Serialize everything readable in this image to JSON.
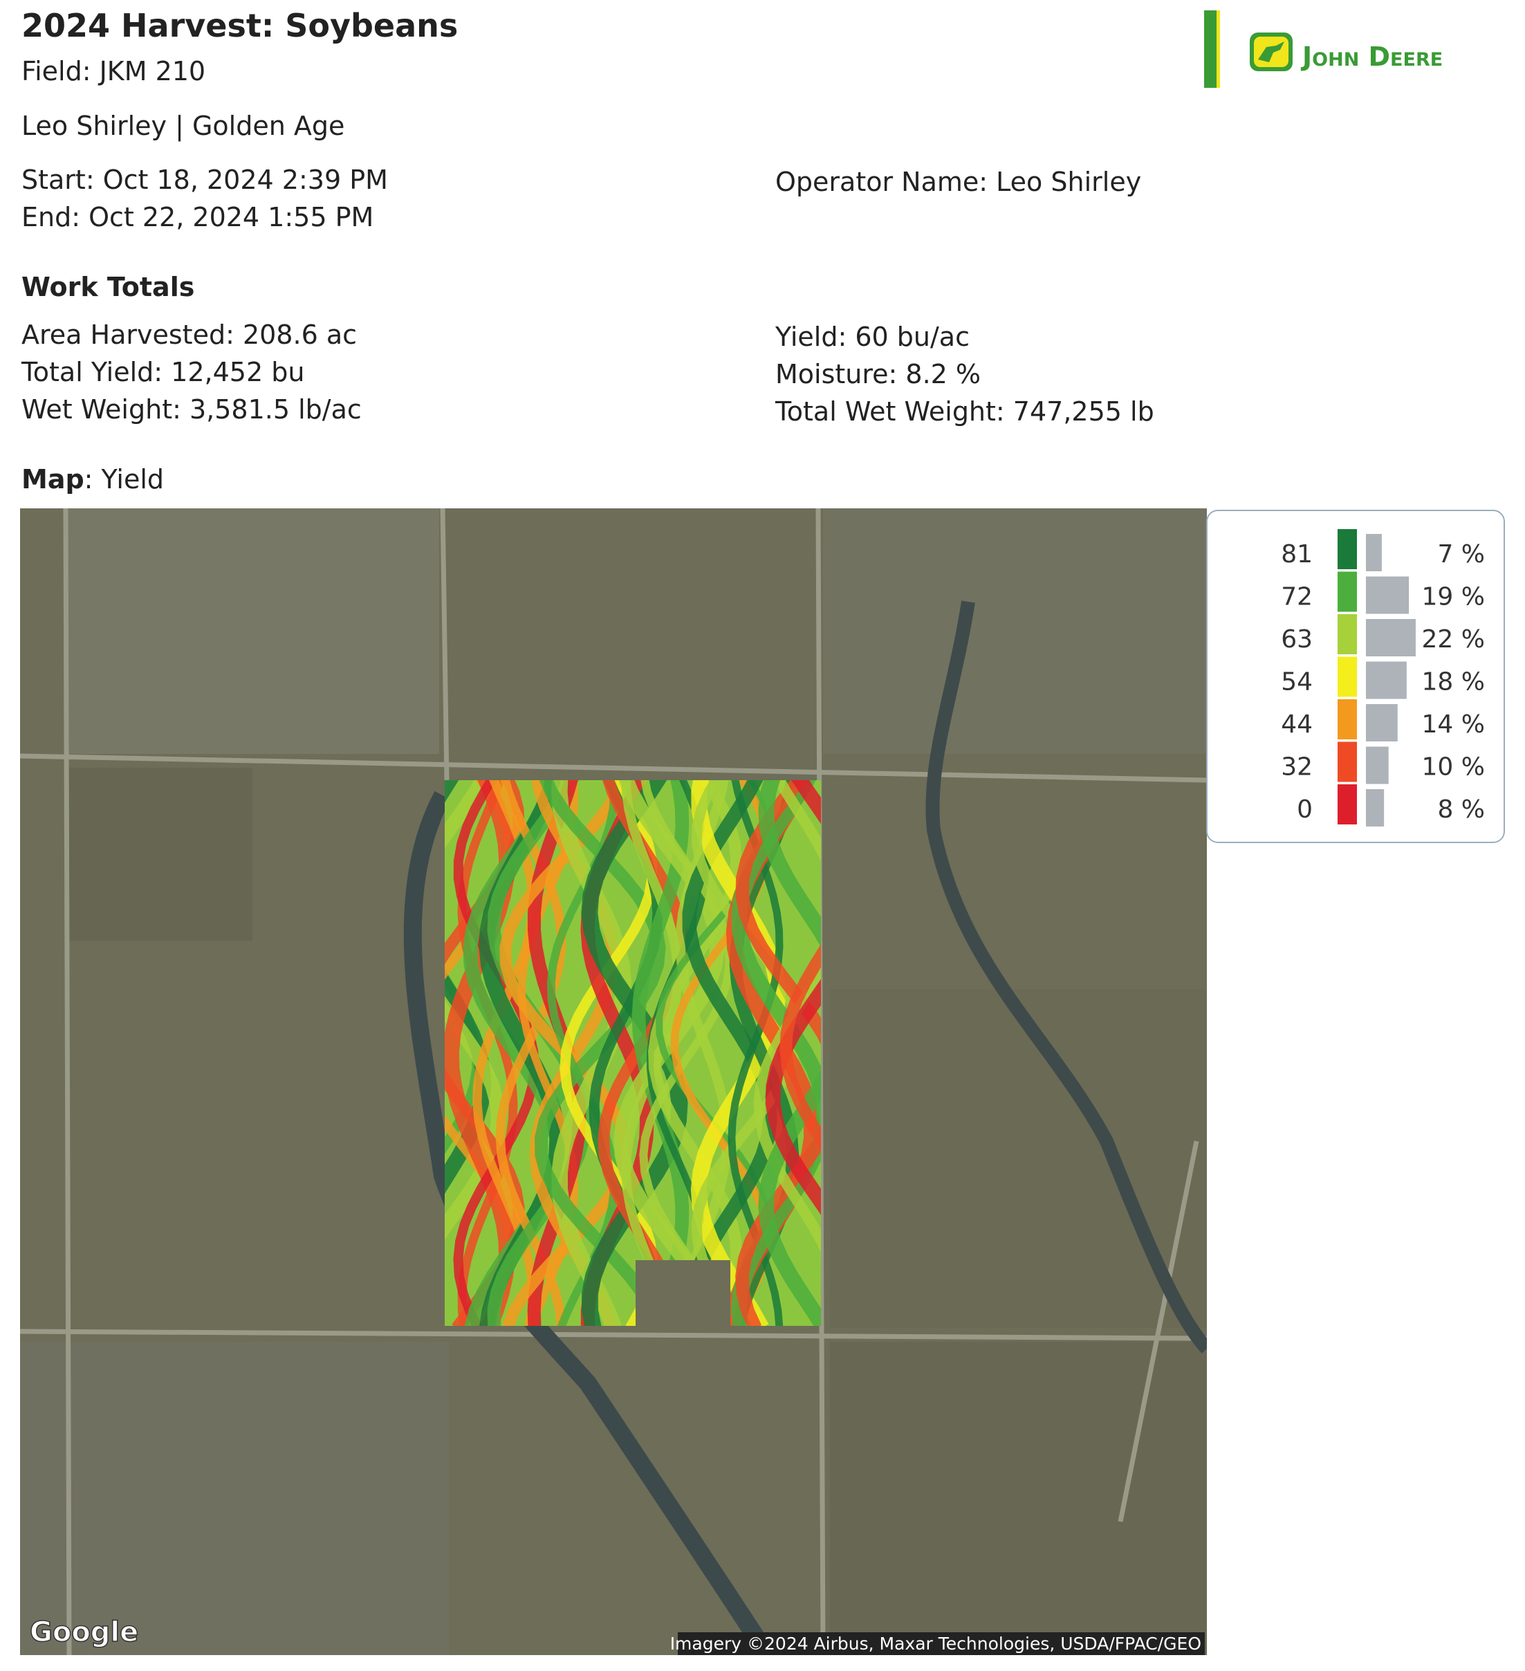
{
  "header": {
    "title": "2024 Harvest: Soybeans",
    "field": "Field:  JKM 210",
    "client_farm": "Leo Shirley  |  Golden Age",
    "start": "Start: Oct 18, 2024 2:39 PM",
    "end": "End: Oct 22, 2024 1:55 PM",
    "operator": "Operator Name: Leo Shirley",
    "brand": "John Deere"
  },
  "work_totals": {
    "heading": "Work Totals",
    "left": [
      "Area Harvested: 208.6 ac",
      "Total Yield: 12,452 bu",
      "Wet Weight: 3,581.5 lb/ac"
    ],
    "right": [
      "Yield: 60 bu/ac",
      "Moisture: 8.2 %",
      "Total Wet Weight: 747,255 lb"
    ]
  },
  "map": {
    "label": "Map",
    "value": ": Yield",
    "legend": [
      {
        "threshold": 81,
        "color": "#1a7a3a",
        "percent": 7,
        "percent_label": "7 %"
      },
      {
        "threshold": 72,
        "color": "#4cae3c",
        "percent": 19,
        "percent_label": "19 %"
      },
      {
        "threshold": 63,
        "color": "#a6d13a",
        "percent": 22,
        "percent_label": "22 %"
      },
      {
        "threshold": 54,
        "color": "#f4ee1c",
        "percent": 18,
        "percent_label": "18 %"
      },
      {
        "threshold": 44,
        "color": "#f39a1e",
        "percent": 14,
        "percent_label": "14 %"
      },
      {
        "threshold": 32,
        "color": "#ee4b25",
        "percent": 10,
        "percent_label": "10 %"
      },
      {
        "threshold": 0,
        "color": "#dd1f2c",
        "percent": 8,
        "percent_label": "8 %"
      }
    ],
    "provider": "Google",
    "attribution": "Imagery ©2024 Airbus, Maxar Technologies, USDA/FPAC/GEO"
  }
}
